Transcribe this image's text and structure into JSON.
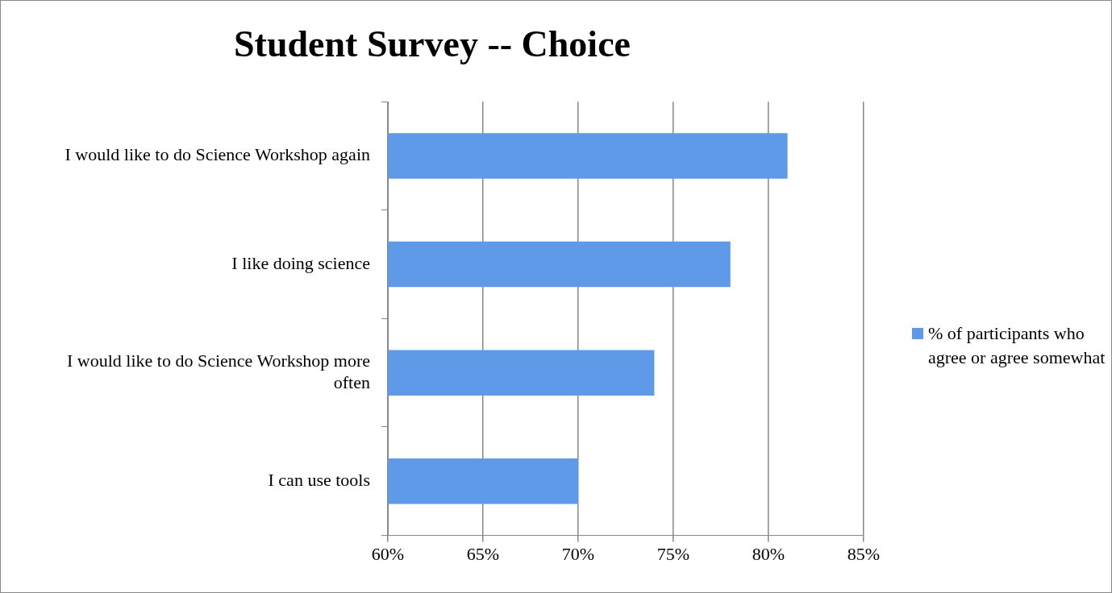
{
  "chart_data": {
    "type": "bar",
    "orientation": "horizontal",
    "title": "Student Survey -- Choice",
    "categories": [
      "I would like to do Science Workshop again",
      "I like doing science",
      "I would like to do Science Workshop more often",
      "I can use tools"
    ],
    "series": [
      {
        "name": "% of participants who agree or agree somewhat",
        "color": "#5f9ae8",
        "values": [
          81,
          78,
          74,
          70
        ]
      }
    ],
    "xlim": [
      60,
      85
    ],
    "xticks": [
      {
        "value": 60,
        "label": "60%"
      },
      {
        "value": 65,
        "label": "65%"
      },
      {
        "value": 70,
        "label": "70%"
      },
      {
        "value": 75,
        "label": "75%"
      },
      {
        "value": 80,
        "label": "80%"
      },
      {
        "value": 85,
        "label": "85%"
      }
    ],
    "grid": "x",
    "legend": "right"
  }
}
